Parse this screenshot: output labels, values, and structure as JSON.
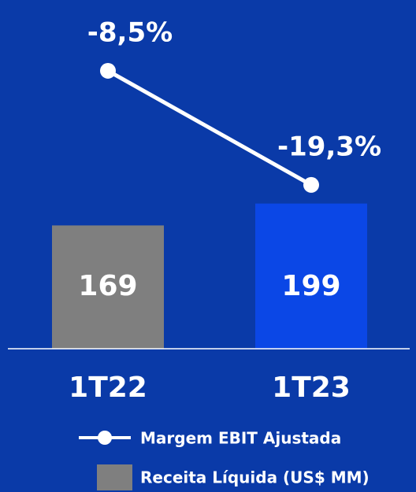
{
  "chart_data": {
    "type": "bar_line",
    "categories": [
      "1T22",
      "1T23"
    ],
    "series": [
      {
        "name": "Margem EBIT Ajustada",
        "type": "line",
        "axis": "y2",
        "color": "#ffffff",
        "values": [
          -8.5,
          -19.3
        ],
        "value_labels": [
          "-8,5%",
          "-19,3%"
        ]
      },
      {
        "name": "Receita Líquida (US$ MM)",
        "type": "bar",
        "color": "#7f7f7f",
        "colors": [
          "#7f7f7f",
          "#0b47e6"
        ],
        "values": [
          169,
          199
        ]
      }
    ],
    "ylim": [
      0,
      478
    ],
    "y2lim": [
      -34.8,
      -1.8
    ]
  }
}
